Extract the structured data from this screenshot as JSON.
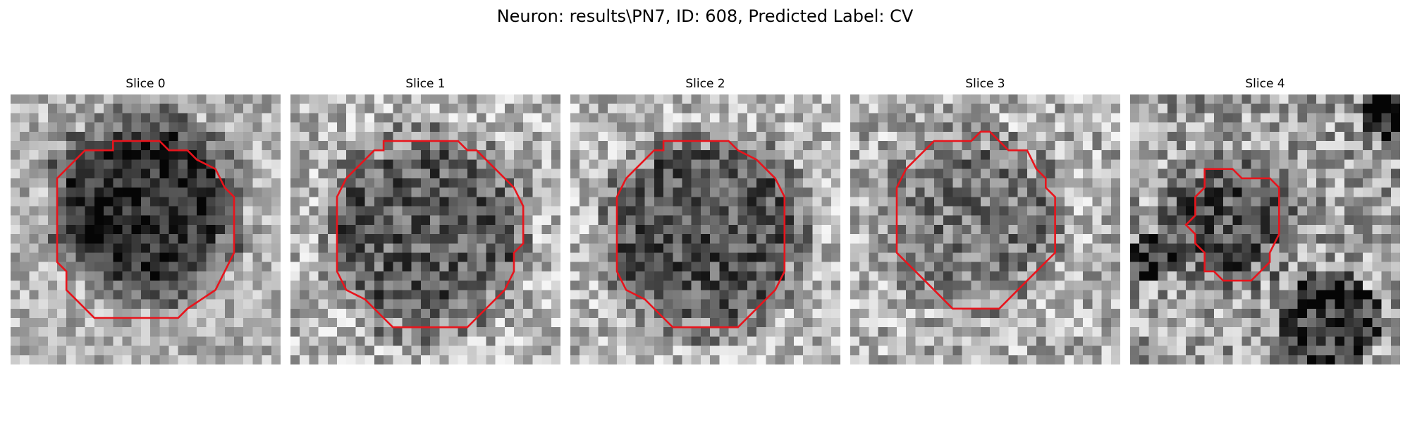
{
  "figure": {
    "suptitle": "Neuron: results\\PN7, ID: 608, Predicted Label: CV"
  },
  "panels": [
    {
      "title": "Slice 0"
    },
    {
      "title": "Slice 1"
    },
    {
      "title": "Slice 2"
    },
    {
      "title": "Slice 3"
    },
    {
      "title": "Slice 4"
    }
  ],
  "colors": {
    "contour": "#e8141c",
    "background": "#ffffff"
  }
}
